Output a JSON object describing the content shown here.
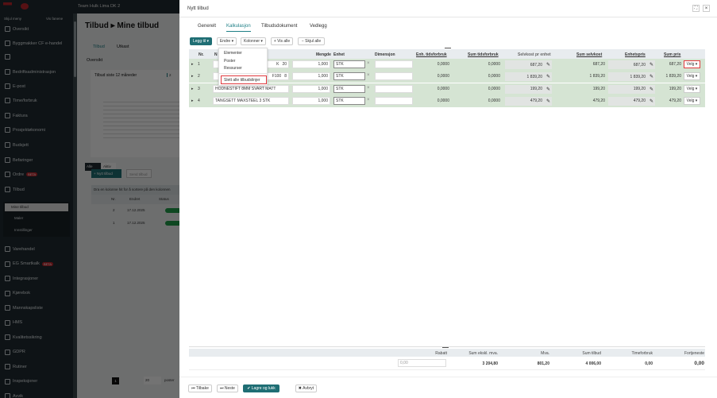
{
  "background": {
    "topbar_title": "Team Hulk Lima DK 2",
    "logo_letters": "EG",
    "hide_menu": "Skjul meny",
    "show_tabs": "Vis fanene",
    "sidebar": [
      {
        "label": "Oversikt",
        "icon": "home-icon"
      },
      {
        "label": "Byggmakker CF e-handel",
        "icon": "cart-icon"
      },
      {
        "label": "",
        "icon": "a-letter-icon"
      },
      {
        "label": "Bedriftsadministrasjon",
        "icon": "building-icon"
      },
      {
        "label": "E-post",
        "icon": "mail-icon"
      },
      {
        "label": "Time/forbruk",
        "icon": "hourglass-icon"
      },
      {
        "label": "Faktura",
        "icon": "invoice-icon"
      },
      {
        "label": "Prosjektøkonomi",
        "icon": "chart-icon"
      },
      {
        "label": "Budsjett",
        "icon": "budget-icon"
      },
      {
        "label": "Befaringer",
        "icon": "inspection-icon"
      },
      {
        "label": "Ordre",
        "icon": "clipboard-icon",
        "badge": "BETA"
      },
      {
        "label": "Tilbud",
        "icon": "offer-icon"
      }
    ],
    "sub_items": [
      "Mine tilbud",
      "Maler",
      "Innstillinger"
    ],
    "sidebar_lower": [
      {
        "label": "Varehandel",
        "icon": "shop-icon"
      },
      {
        "label": "EG Smartkalk",
        "icon": "calc-icon",
        "badge": "BETA"
      },
      {
        "label": "Integrasjoner",
        "icon": "link-icon"
      },
      {
        "label": "Kjørebok",
        "icon": "steering-icon"
      },
      {
        "label": "Mannskapsliste",
        "icon": "list-icon"
      },
      {
        "label": "HMS",
        "icon": "helmet-icon"
      },
      {
        "label": "Kvalitetssikring",
        "icon": "check-icon"
      },
      {
        "label": "GDPR",
        "icon": "shield-icon"
      },
      {
        "label": "Rutiner",
        "icon": "books-icon"
      },
      {
        "label": "Inspeksjoner",
        "icon": "helmet-icon"
      },
      {
        "label": "Avvik",
        "icon": "warning-icon"
      }
    ],
    "page_title": "Tilbud",
    "page_subtitle": "Mine tilbud",
    "tabs": [
      "Tilbud",
      "Utkast"
    ],
    "overview": "Oversikt",
    "chart_title": "Tilbud siste 12 måneder",
    "chart_kpi": "2",
    "filters": [
      "Alle",
      "Aktiv"
    ],
    "new_offer": "+ Nytt tilbud",
    "send_offer": "Send tilbud",
    "group_hint": "Dra en kolonne hit for å sortere på den kolonnen",
    "cols": [
      "Nr.",
      "Endret",
      "Status"
    ],
    "rows": [
      {
        "nr": "2",
        "date": "17.12.2025"
      },
      {
        "nr": "1",
        "date": "17.12.2025"
      }
    ],
    "page": "1",
    "page_size": "20",
    "page_suffix": "poster"
  },
  "modal": {
    "title": "Nytt tilbud",
    "tabs": [
      "Generelt",
      "Kalkulasjon",
      "Tilbudsdokument",
      "Vedlegg"
    ],
    "active_tab": "Kalkulasjon",
    "toolbar": {
      "add": "Legg til ▾",
      "edit": "Endre ▾",
      "columns": "Kolonner ▾",
      "show_all": "+ Vis alle",
      "hide_all": "− Skjul alle"
    },
    "edit_menu": [
      "Elementer",
      "Poster",
      "Ressurser",
      "Slett alle tilbudslinjer"
    ],
    "columns": [
      "Nr.",
      "N",
      "Mengde",
      "Enhet",
      "Dimensjon",
      "Enh. tidsforbruk",
      "Sum tidsforbruk",
      "Selvkost pr enhet",
      "Sum selvkost",
      "Enhetspris",
      "Sum pris"
    ],
    "rows": [
      {
        "nr": "1",
        "desc": "K",
        "desc_tail": "20",
        "qty": "1,000",
        "unit": "STK",
        "unit_time": "0,0000",
        "sum_time": "0,0000",
        "cost": "687,20",
        "sum_cost": "687,20",
        "price": "687,20",
        "sum_price": "687,20",
        "action": "Velg ▾"
      },
      {
        "nr": "2",
        "desc": "F100",
        "desc_tail": "8",
        "qty": "1,000",
        "unit": "STK",
        "unit_time": "0,0000",
        "sum_time": "0,0000",
        "cost": "1 839,20",
        "sum_cost": "1 839,20",
        "price": "1 839,20",
        "sum_price": "1 839,20",
        "action": "Velg ▾"
      },
      {
        "nr": "3",
        "desc": "HODNESTIFT 8MM SVART MATT",
        "desc_tail": "",
        "qty": "1,000",
        "unit": "STK",
        "unit_time": "0,0000",
        "sum_time": "0,0000",
        "cost": "199,20",
        "sum_cost": "199,20",
        "price": "199,20",
        "sum_price": "199,20",
        "action": "Velg ▾"
      },
      {
        "nr": "4",
        "desc": "TANGSETT MAXSTEEL 3 STK",
        "desc_tail": "",
        "qty": "1,000",
        "unit": "STK",
        "unit_time": "0,0000",
        "sum_time": "0,0000",
        "cost": "479,20",
        "sum_cost": "479,20",
        "price": "479,20",
        "sum_price": "479,20",
        "action": "Velg ▾"
      }
    ],
    "summary": {
      "labels": [
        "Rabatt",
        "Sum ekskl. mva.",
        "Mva.",
        "Sum tilbud",
        "Timeforbruk",
        "Fortjeneste"
      ],
      "discount": "0,00",
      "sum_ex_vat": "3 204,80",
      "vat": "801,20",
      "total": "4 006,00",
      "hours": "0,00",
      "profit": "0,00"
    },
    "footer": {
      "back": "⏮ Tilbake",
      "next": "⏭ Neste",
      "save": "✔ Lagre og lukk",
      "cancel": "✖ Avbryt"
    },
    "highlight_color": "#e0393e",
    "accent": "#1f6e74"
  }
}
